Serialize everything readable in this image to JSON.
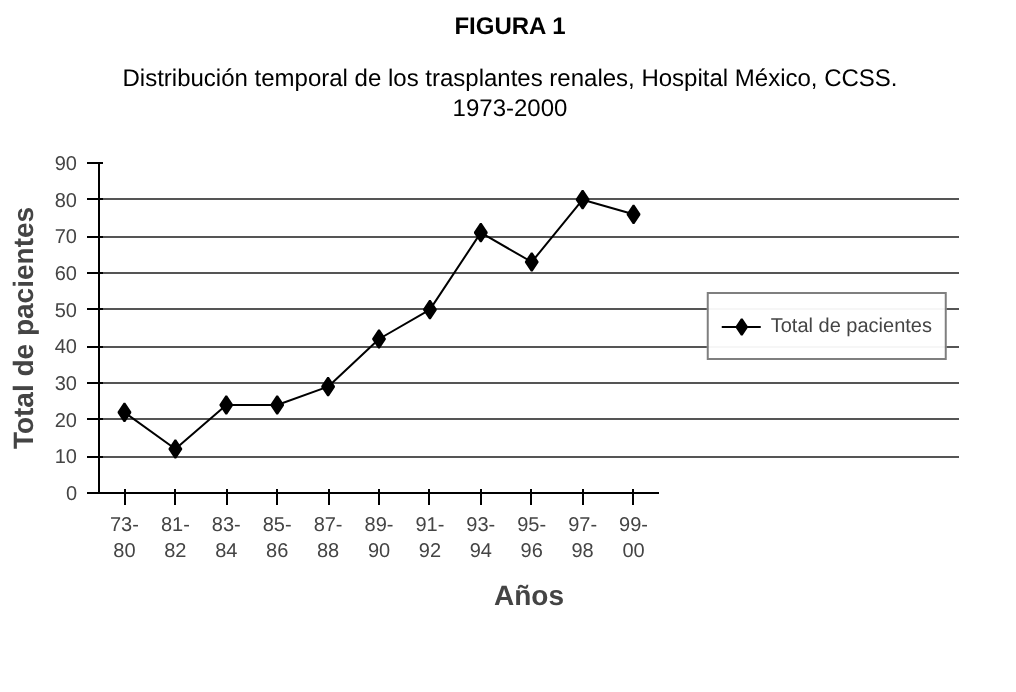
{
  "chart_data": {
    "type": "line",
    "title": "FIGURA 1",
    "subtitle": "Distribución temporal de los trasplantes renales, Hospital México, CCSS. 1973-2000",
    "xlabel": "Años",
    "ylabel": "Total de pacientes",
    "categories": [
      "73-80",
      "81-82",
      "83-84",
      "85-86",
      "87-88",
      "89-90",
      "91-92",
      "93-94",
      "95-96",
      "97-98",
      "99-00"
    ],
    "series": [
      {
        "name": "Total de pacientes",
        "color": "#000000",
        "values": [
          22,
          12,
          24,
          24,
          29,
          42,
          50,
          71,
          63,
          80,
          76
        ]
      }
    ],
    "ylim": [
      0,
      90
    ],
    "yticks": [
      0,
      10,
      20,
      30,
      40,
      50,
      60,
      70,
      80,
      90
    ],
    "grid": "y",
    "legend": "right",
    "marker": "diamond",
    "line_style": "solid"
  }
}
